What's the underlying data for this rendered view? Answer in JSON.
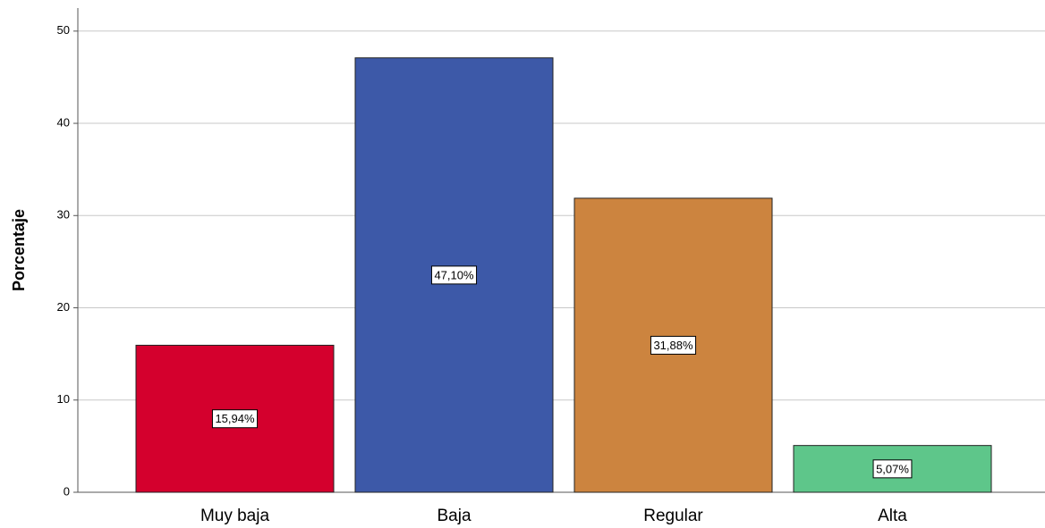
{
  "chart_data": {
    "type": "bar",
    "y_label": "Porcentaje",
    "categories": [
      "Muy baja",
      "Baja",
      "Regular",
      "Alta"
    ],
    "values": [
      15.94,
      47.1,
      31.88,
      5.07
    ],
    "value_labels": [
      "15,94%",
      "47,10%",
      "31,88%",
      "5,07%"
    ],
    "colors": [
      "#d4002d",
      "#3d59a8",
      "#cc843f",
      "#5ec68a"
    ],
    "ylim": [
      0,
      52.5
    ],
    "yticks": [
      0,
      10,
      20,
      30,
      40,
      50
    ],
    "grid": true
  }
}
